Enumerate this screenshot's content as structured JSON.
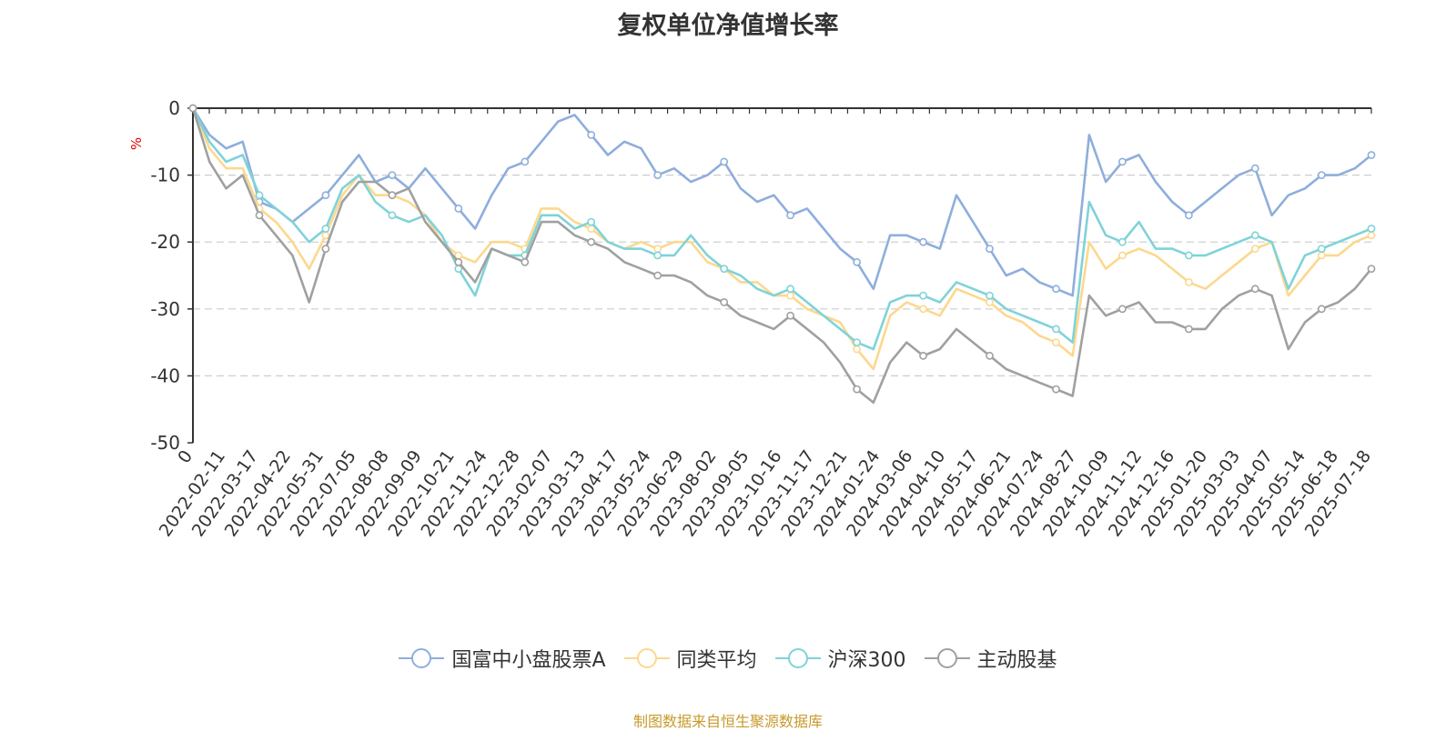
{
  "title": "复权单位净值增长率",
  "source_note": "制图数据来自恒生聚源数据库",
  "colors": {
    "fund": "#8eaedc",
    "peer": "#fcd88e",
    "csi300": "#7fd3d8",
    "active": "#a0a0a0",
    "axis": "#333333",
    "grid": "#cccccc",
    "ylabel": "#e00000"
  },
  "chart_data": {
    "type": "line",
    "title": "复权单位净值增长率",
    "xlabel": "",
    "ylabel": "%",
    "ylim": [
      -50,
      0
    ],
    "yticks": [
      0,
      -10,
      -20,
      -30,
      -40,
      -50
    ],
    "grid": true,
    "legend_position": "bottom",
    "x_tick_labels": [
      "0",
      "2022-02-11",
      "2022-03-17",
      "2022-04-22",
      "2022-05-31",
      "2022-07-05",
      "2022-08-08",
      "2022-09-09",
      "2022-10-21",
      "2022-11-24",
      "2022-12-28",
      "2023-02-07",
      "2023-03-13",
      "2023-04-17",
      "2023-05-24",
      "2023-06-29",
      "2023-08-02",
      "2023-09-05",
      "2023-10-16",
      "2023-11-17",
      "2023-12-21",
      "2024-01-24",
      "2024-03-06",
      "2024-04-10",
      "2024-05-17",
      "2024-06-21",
      "2024-07-24",
      "2024-08-27",
      "2024-10-09",
      "2024-11-12",
      "2024-12-16",
      "2025-01-20",
      "2025-03-03",
      "2025-04-07",
      "2025-05-14",
      "2025-06-18",
      "2025-07-18"
    ],
    "series": [
      {
        "name": "国富中小盘股票A",
        "color": "#8eaedc",
        "values": [
          0,
          -4,
          -6,
          -5,
          -14,
          -15,
          -17,
          -15,
          -13,
          -10,
          -7,
          -11,
          -10,
          -12,
          -9,
          -12,
          -15,
          -18,
          -13,
          -9,
          -8,
          -5,
          -2,
          -1,
          -4,
          -7,
          -5,
          -6,
          -10,
          -9,
          -11,
          -10,
          -8,
          -12,
          -14,
          -13,
          -16,
          -15,
          -18,
          -21,
          -23,
          -27,
          -19,
          -19,
          -20,
          -21,
          -13,
          -17,
          -21,
          -25,
          -24,
          -26,
          -27,
          -28,
          -4,
          -11,
          -8,
          -7,
          -11,
          -14,
          -16,
          -14,
          -12,
          -10,
          -9,
          -16,
          -13,
          -12,
          -10,
          -10,
          -9,
          -7
        ]
      },
      {
        "name": "同类平均",
        "color": "#fcd88e",
        "values": [
          0,
          -6,
          -9,
          -9,
          -15,
          -17,
          -20,
          -24,
          -19,
          -13,
          -10,
          -13,
          -13,
          -14,
          -16,
          -20,
          -22,
          -23,
          -20,
          -20,
          -21,
          -15,
          -15,
          -17,
          -18,
          -20,
          -21,
          -20,
          -21,
          -20,
          -20,
          -23,
          -24,
          -26,
          -26,
          -28,
          -28,
          -30,
          -31,
          -32,
          -36,
          -39,
          -31,
          -29,
          -30,
          -31,
          -27,
          -28,
          -29,
          -31,
          -32,
          -34,
          -35,
          -37,
          -20,
          -24,
          -22,
          -21,
          -22,
          -24,
          -26,
          -27,
          -25,
          -23,
          -21,
          -20,
          -28,
          -25,
          -22,
          -22,
          -20,
          -19
        ]
      },
      {
        "name": "沪深300",
        "color": "#7fd3d8",
        "values": [
          0,
          -5,
          -8,
          -7,
          -13,
          -15,
          -17,
          -20,
          -18,
          -12,
          -10,
          -14,
          -16,
          -17,
          -16,
          -19,
          -24,
          -28,
          -21,
          -22,
          -22,
          -16,
          -16,
          -18,
          -17,
          -20,
          -21,
          -21,
          -22,
          -22,
          -19,
          -22,
          -24,
          -25,
          -27,
          -28,
          -27,
          -29,
          -31,
          -33,
          -35,
          -36,
          -29,
          -28,
          -28,
          -29,
          -26,
          -27,
          -28,
          -30,
          -31,
          -32,
          -33,
          -35,
          -14,
          -19,
          -20,
          -17,
          -21,
          -21,
          -22,
          -22,
          -21,
          -20,
          -19,
          -20,
          -27,
          -22,
          -21,
          -20,
          -19,
          -18
        ]
      },
      {
        "name": "主动股基",
        "color": "#a0a0a0",
        "values": [
          0,
          -8,
          -12,
          -10,
          -16,
          -19,
          -22,
          -29,
          -21,
          -14,
          -11,
          -11,
          -13,
          -12,
          -17,
          -20,
          -23,
          -26,
          -21,
          -22,
          -23,
          -17,
          -17,
          -19,
          -20,
          -21,
          -23,
          -24,
          -25,
          -25,
          -26,
          -28,
          -29,
          -31,
          -32,
          -33,
          -31,
          -33,
          -35,
          -38,
          -42,
          -44,
          -38,
          -35,
          -37,
          -36,
          -33,
          -35,
          -37,
          -39,
          -40,
          -41,
          -42,
          -43,
          -28,
          -31,
          -30,
          -29,
          -32,
          -32,
          -33,
          -33,
          -30,
          -28,
          -27,
          -28,
          -36,
          -32,
          -30,
          -29,
          -27,
          -24
        ]
      }
    ]
  }
}
